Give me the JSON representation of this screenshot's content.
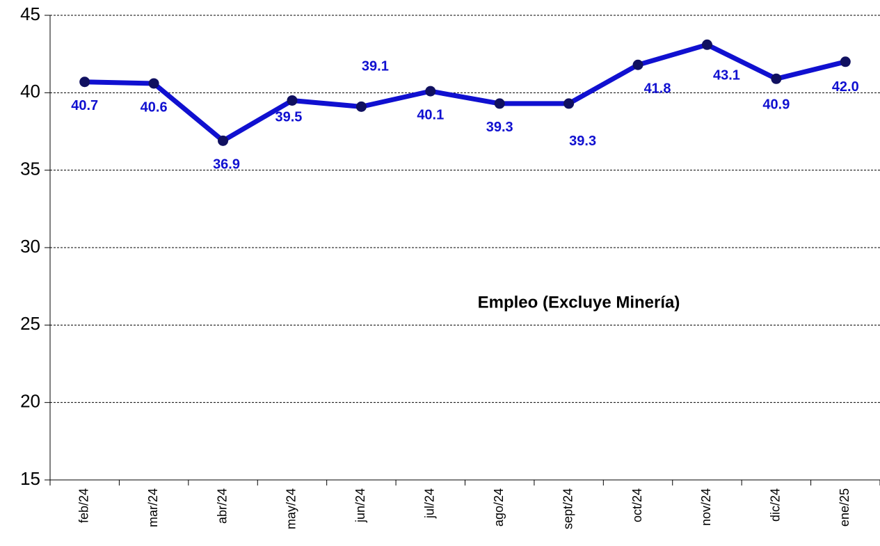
{
  "chart_data": {
    "type": "line",
    "annotation": "Empleo (Excluye Minería)",
    "categories": [
      "feb/24",
      "mar/24",
      "abr/24",
      "may/24",
      "jun/24",
      "jul/24",
      "ago/24",
      "sept/24",
      "oct/24",
      "nov/24",
      "dic/24",
      "ene/25"
    ],
    "series": [
      {
        "name": "Empleo",
        "color": "#1010d0",
        "values": [
          40.7,
          40.6,
          36.9,
          39.5,
          39.1,
          40.1,
          39.3,
          39.3,
          41.8,
          43.1,
          40.9,
          42.0
        ],
        "value_labels": [
          "40.7",
          "40.6",
          "36.9",
          "39.5",
          "39.1",
          "40.1",
          "39.3",
          "39.3",
          "41.8",
          "43.1",
          "40.9",
          "42.0"
        ]
      }
    ],
    "ylim": [
      15,
      45
    ],
    "yticks": [
      15,
      20,
      25,
      30,
      35,
      40,
      45
    ],
    "grid": true
  }
}
